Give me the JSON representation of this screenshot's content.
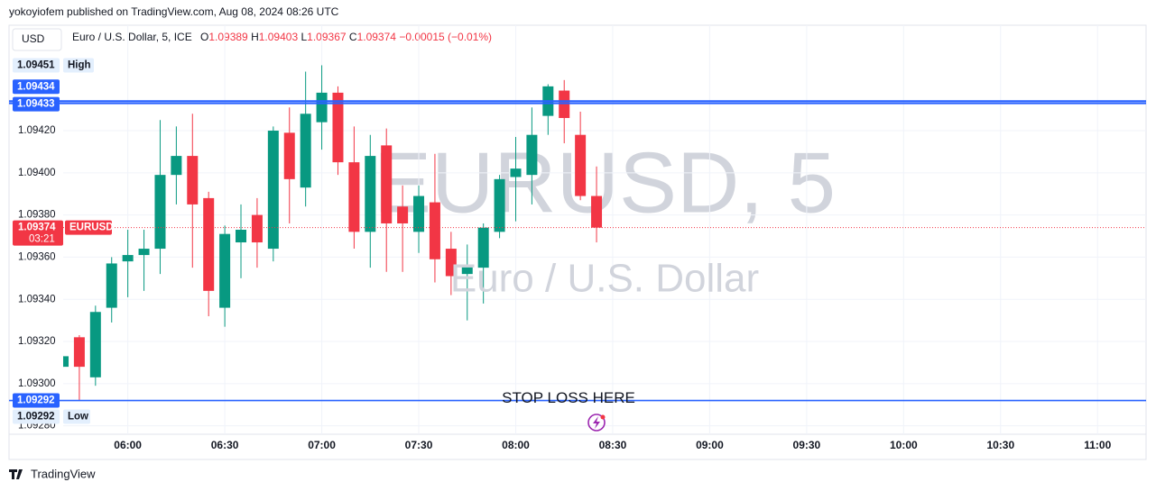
{
  "header": {
    "author_line": "yokoyiofem published on TradingView.com, Aug 08, 2024 08:26 UTC",
    "currency": "USD",
    "footer": "TradingView"
  },
  "chart_data": {
    "type": "candlestick",
    "title": "Euro / U.S. Dollar, 5, ICE",
    "ohlc_letters": [
      "O",
      "H",
      "L",
      "C"
    ],
    "change_label": "−0.00015 (−0.01%)",
    "watermark": "EURUSD, 5",
    "watermark_subtitle": "Euro / U.S. Dollar",
    "x": [
      "05:40",
      "05:45",
      "05:50",
      "05:55",
      "06:00",
      "06:05",
      "06:10",
      "06:15",
      "06:20",
      "06:25",
      "06:30",
      "06:35",
      "06:40",
      "06:45",
      "06:50",
      "06:55",
      "07:00",
      "07:05",
      "07:10",
      "07:15",
      "07:20",
      "07:25",
      "07:30",
      "07:35",
      "07:40",
      "07:45",
      "07:50",
      "07:55",
      "08:00",
      "08:05",
      "08:10",
      "08:15",
      "08:20",
      "08:25"
    ],
    "open": [
      1.09308,
      1.09322,
      1.09303,
      1.09336,
      1.09358,
      1.09361,
      1.09364,
      1.09399,
      1.09408,
      1.09388,
      1.09336,
      1.09367,
      1.0938,
      1.09364,
      1.09419,
      1.09393,
      1.09424,
      1.09438,
      1.09405,
      1.09372,
      1.09413,
      1.09384,
      1.09372,
      1.09386,
      1.09364,
      1.09352,
      1.09355,
      1.09372,
      1.09398,
      1.09399,
      1.09427,
      1.09439,
      1.09418,
      1.09389
    ],
    "high": [
      1.09313,
      1.09323,
      1.09337,
      1.0936,
      1.09373,
      1.09373,
      1.09425,
      1.09422,
      1.09428,
      1.09391,
      1.09375,
      1.09385,
      1.09388,
      1.09422,
      1.09431,
      1.09448,
      1.09451,
      1.09441,
      1.09422,
      1.09418,
      1.09421,
      1.09394,
      1.09394,
      1.09409,
      1.09372,
      1.09366,
      1.09376,
      1.09399,
      1.09417,
      1.09431,
      1.09442,
      1.09444,
      1.09429,
      1.09403
    ],
    "low": [
      1.09308,
      1.09292,
      1.09299,
      1.09329,
      1.09341,
      1.09344,
      1.09352,
      1.09385,
      1.09355,
      1.09332,
      1.09327,
      1.0935,
      1.09355,
      1.09358,
      1.09376,
      1.09384,
      1.09411,
      1.09399,
      1.09364,
      1.09355,
      1.09353,
      1.09353,
      1.09362,
      1.09348,
      1.09342,
      1.0933,
      1.09338,
      1.09369,
      1.09377,
      1.09385,
      1.09418,
      1.09414,
      1.09387,
      1.09367
    ],
    "close": [
      1.09313,
      1.09308,
      1.09334,
      1.09357,
      1.09361,
      1.09364,
      1.09399,
      1.09408,
      1.09385,
      1.09344,
      1.09371,
      1.09373,
      1.09367,
      1.0942,
      1.09397,
      1.09428,
      1.09438,
      1.09405,
      1.09372,
      1.09408,
      1.09376,
      1.09376,
      1.09389,
      1.09359,
      1.09351,
      1.09356,
      1.09374,
      1.09397,
      1.09402,
      1.09418,
      1.09441,
      1.09426,
      1.09389,
      1.09374
    ],
    "colors": {
      "up": "#089981",
      "down": "#f23645"
    },
    "ylim": [
      1.09276,
      1.0947
    ],
    "yticks": [
      {
        "value": 1.0928,
        "label": "1.09280"
      },
      {
        "value": 1.093,
        "label": "1.09300"
      },
      {
        "value": 1.0932,
        "label": "1.09320"
      },
      {
        "value": 1.0934,
        "label": "1.09340"
      },
      {
        "value": 1.0936,
        "label": "1.09360"
      },
      {
        "value": 1.0938,
        "label": "1.09380"
      },
      {
        "value": 1.094,
        "label": "1.09400"
      },
      {
        "value": 1.0942,
        "label": "1.09420"
      }
    ],
    "xlim": [
      "05:40",
      "11:15"
    ],
    "xticks": [
      "06:00",
      "06:30",
      "07:00",
      "07:30",
      "08:00",
      "08:30",
      "09:00",
      "09:30",
      "10:00",
      "10:30",
      "11:00"
    ],
    "grid": true,
    "levels": [
      {
        "value": 1.09434,
        "color": "#2962ff"
      },
      {
        "value": 1.09433,
        "color": "#2962ff"
      },
      {
        "value": 1.09292,
        "color": "#2962ff"
      }
    ],
    "annotation": "STOP LOSS HERE",
    "high_marker": {
      "value": 1.09451,
      "label": "High"
    },
    "low_marker": {
      "value": 1.09292,
      "label": "Low"
    },
    "last_price": {
      "symbol": "EURUSD",
      "countdown": "03:21"
    }
  }
}
